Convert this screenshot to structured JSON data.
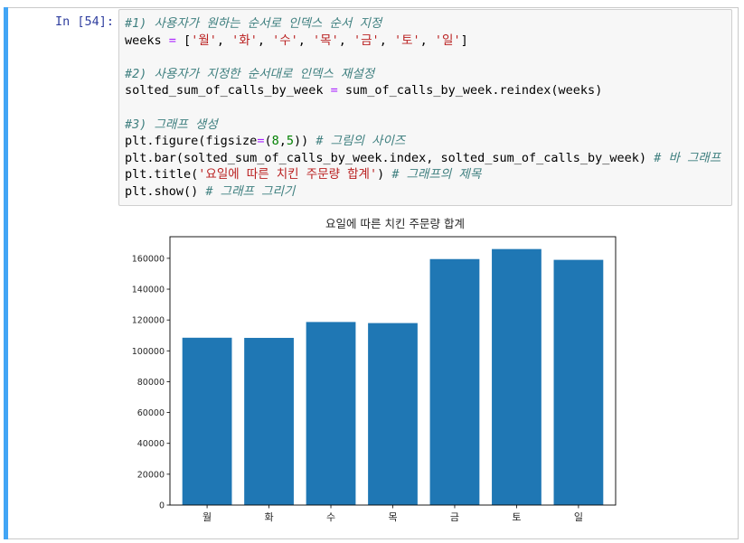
{
  "cell": {
    "prompt": "In [54]:",
    "code_lines": [
      [
        {
          "t": "#1) 사용자가 원하는 순서로 인덱스 순서 지정",
          "c": "cm"
        }
      ],
      [
        {
          "t": "weeks "
        },
        {
          "t": "=",
          "c": "op"
        },
        {
          "t": " ["
        },
        {
          "t": "'월'",
          "c": "st"
        },
        {
          "t": ", "
        },
        {
          "t": "'화'",
          "c": "st"
        },
        {
          "t": ", "
        },
        {
          "t": "'수'",
          "c": "st"
        },
        {
          "t": ", "
        },
        {
          "t": "'목'",
          "c": "st"
        },
        {
          "t": ", "
        },
        {
          "t": "'금'",
          "c": "st"
        },
        {
          "t": ", "
        },
        {
          "t": "'토'",
          "c": "st"
        },
        {
          "t": ", "
        },
        {
          "t": "'일'",
          "c": "st"
        },
        {
          "t": "]"
        }
      ],
      [],
      [
        {
          "t": "#2) 사용자가 지정한 순서대로 인덱스 재설정",
          "c": "cm"
        }
      ],
      [
        {
          "t": "solted_sum_of_calls_by_week "
        },
        {
          "t": "=",
          "c": "op"
        },
        {
          "t": " sum_of_calls_by_week.reindex(weeks)"
        }
      ],
      [],
      [
        {
          "t": "#3) 그래프 생성",
          "c": "cm"
        }
      ],
      [
        {
          "t": "plt.figure(figsize"
        },
        {
          "t": "=",
          "c": "op"
        },
        {
          "t": "("
        },
        {
          "t": "8",
          "c": "nm"
        },
        {
          "t": ","
        },
        {
          "t": "5",
          "c": "nm"
        },
        {
          "t": ")) "
        },
        {
          "t": "# 그림의 사이즈",
          "c": "cm"
        }
      ],
      [
        {
          "t": "plt.bar(solted_sum_of_calls_by_week.index, solted_sum_of_calls_by_week) "
        },
        {
          "t": "# 바 그래프",
          "c": "cm"
        }
      ],
      [
        {
          "t": "plt.title("
        },
        {
          "t": "'요일에 따른 치킨 주문량 합계'",
          "c": "st"
        },
        {
          "t": ") "
        },
        {
          "t": "# 그래프의 제목",
          "c": "cm"
        }
      ],
      [
        {
          "t": "plt.show() "
        },
        {
          "t": "# 그래프 그리기",
          "c": "cm"
        }
      ]
    ]
  },
  "chart_data": {
    "type": "bar",
    "title": "요일에 따른 치킨 주문량 합계",
    "categories": [
      "월",
      "화",
      "수",
      "목",
      "금",
      "토",
      "일"
    ],
    "values": [
      108500,
      108400,
      118700,
      118000,
      159500,
      166000,
      159000
    ],
    "ylim": [
      0,
      174000
    ],
    "yticks": [
      0,
      20000,
      40000,
      60000,
      80000,
      100000,
      120000,
      140000,
      160000
    ],
    "bar_color": "#1f77b4",
    "grid": false
  },
  "colors": {
    "selection_bar": "#42a5f5",
    "prompt": "#303f9f"
  }
}
